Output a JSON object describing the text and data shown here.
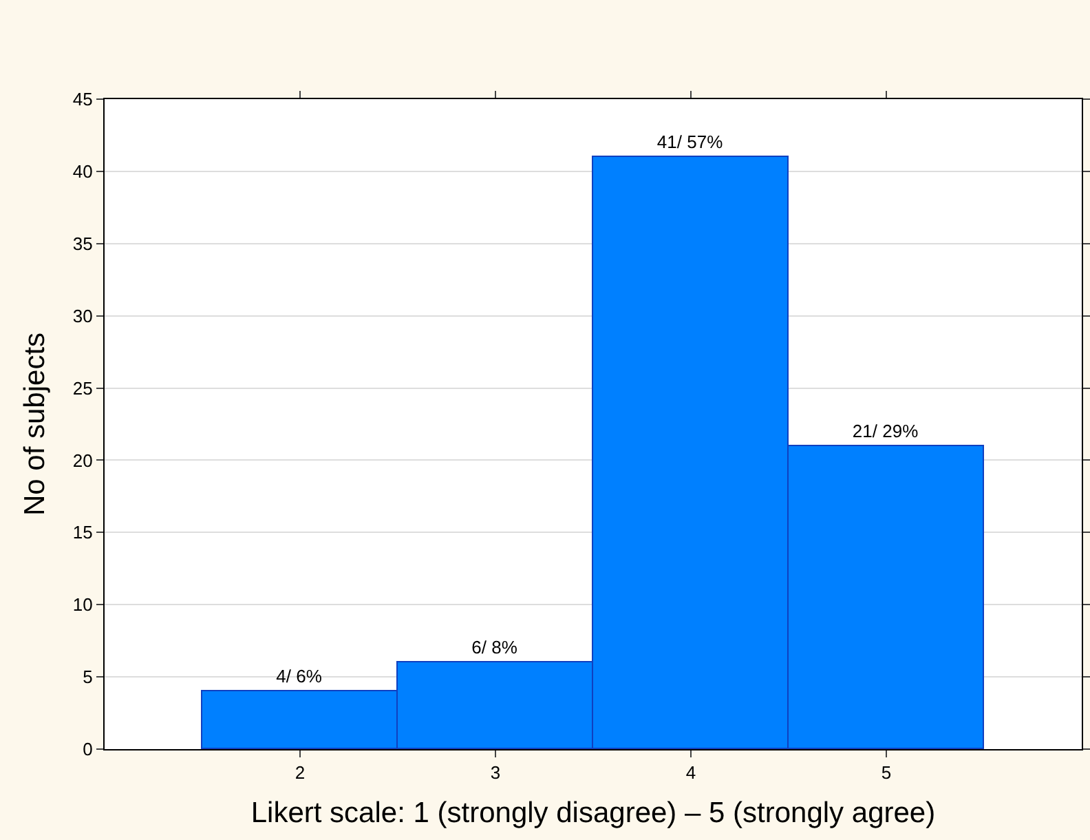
{
  "chart_data": {
    "type": "bar",
    "xlabel": "Likert scale: 1 (strongly disagree) – 5 (strongly agree)",
    "ylabel": "No of subjects",
    "x": [
      2,
      3,
      4,
      5
    ],
    "values": [
      4,
      6,
      41,
      21
    ],
    "color": "#0080ff",
    "value_labels": [
      "4/ 6%",
      "6/ 8%",
      "41/ 57%",
      "21/ 29%"
    ],
    "xlim": [
      1,
      6
    ],
    "xticks": [
      2,
      3,
      4,
      5
    ],
    "ylim": [
      0,
      45
    ],
    "yticks": [
      0,
      5,
      10,
      15,
      20,
      25,
      30,
      35,
      40,
      45
    ],
    "grid": "y"
  }
}
